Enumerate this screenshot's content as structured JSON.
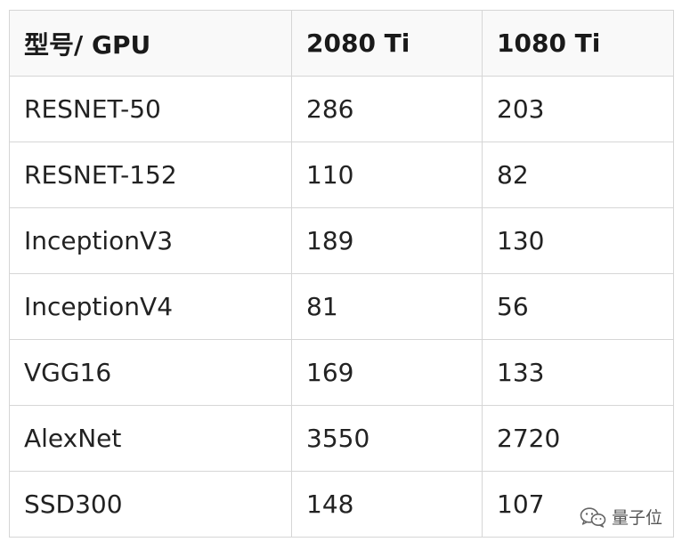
{
  "chart_data": {
    "type": "table",
    "columns": [
      "型号/ GPU",
      "2080 Ti",
      "1080 Ti"
    ],
    "rows": [
      [
        "RESNET-50",
        286,
        203
      ],
      [
        "RESNET-152",
        110,
        82
      ],
      [
        "InceptionV3",
        189,
        130
      ],
      [
        "InceptionV4",
        81,
        56
      ],
      [
        "VGG16",
        169,
        133
      ],
      [
        "AlexNet",
        3550,
        2720
      ],
      [
        "SSD300",
        148,
        107
      ]
    ]
  },
  "watermark": {
    "text": "量子位",
    "icon": "wechat-icon"
  },
  "colors": {
    "border": "#d6d6d6",
    "header_bg": "#f9f9f9",
    "text": "#222222"
  }
}
